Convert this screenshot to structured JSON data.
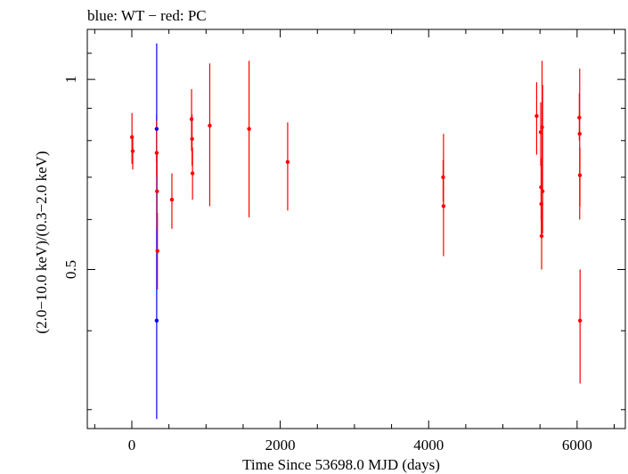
{
  "chart_data": {
    "type": "scatter",
    "title": "blue: WT − red: PC",
    "xlabel": "Time Since 53698.0 MJD (days)",
    "ylabel": "(2.0−10.0 keV)/(0.3−2.0 keV)",
    "xlim": [
      -600,
      6650
    ],
    "ylim": [
      0.28,
      1.2
    ],
    "y_log": true,
    "x_ticks": [
      0,
      2000,
      4000,
      6000
    ],
    "x_tick_labels": [
      "0",
      "2000",
      "4000",
      "6000"
    ],
    "y_ticks": [
      0.5,
      1
    ],
    "y_tick_labels": [
      "0.5",
      "1"
    ],
    "grid": false,
    "series": [
      {
        "color": "#0000ff",
        "points": [
          {
            "x": 335,
            "y": 0.835,
            "ylo": 0.74,
            "yhi": 0.88
          },
          {
            "x": 335,
            "y": 0.415,
            "ylo": 0.29,
            "yhi": 1.14
          }
        ]
      },
      {
        "color": "#ff0000",
        "points": [
          {
            "x": 2,
            "y": 0.81,
            "ylo": 0.735,
            "yhi": 0.885
          },
          {
            "x": 12,
            "y": 0.77,
            "ylo": 0.72,
            "yhi": 0.815
          },
          {
            "x": 335,
            "y": 0.765,
            "ylo": 0.7,
            "yhi": 0.86
          },
          {
            "x": 340,
            "y": 0.665,
            "ylo": 0.58,
            "yhi": 0.77
          },
          {
            "x": 345,
            "y": 0.535,
            "ylo": 0.465,
            "yhi": 0.615
          },
          {
            "x": 540,
            "y": 0.645,
            "ylo": 0.58,
            "yhi": 0.71
          },
          {
            "x": 805,
            "y": 0.865,
            "ylo": 0.77,
            "yhi": 0.965
          },
          {
            "x": 812,
            "y": 0.805,
            "ylo": 0.73,
            "yhi": 0.88
          },
          {
            "x": 818,
            "y": 0.71,
            "ylo": 0.645,
            "yhi": 0.78
          },
          {
            "x": 1050,
            "y": 0.845,
            "ylo": 0.63,
            "yhi": 1.06
          },
          {
            "x": 1580,
            "y": 0.835,
            "ylo": 0.605,
            "yhi": 1.07
          },
          {
            "x": 2100,
            "y": 0.74,
            "ylo": 0.62,
            "yhi": 0.855
          },
          {
            "x": 4195,
            "y": 0.7,
            "ylo": 0.64,
            "yhi": 0.745
          },
          {
            "x": 4200,
            "y": 0.63,
            "ylo": 0.525,
            "yhi": 0.82
          },
          {
            "x": 5455,
            "y": 0.875,
            "ylo": 0.76,
            "yhi": 0.99
          },
          {
            "x": 5510,
            "y": 0.825,
            "ylo": 0.73,
            "yhi": 0.92
          },
          {
            "x": 5515,
            "y": 0.675,
            "ylo": 0.6,
            "yhi": 0.75
          },
          {
            "x": 5518,
            "y": 0.635,
            "ylo": 0.56,
            "yhi": 0.71
          },
          {
            "x": 5522,
            "y": 0.565,
            "ylo": 0.5,
            "yhi": 0.63
          },
          {
            "x": 5528,
            "y": 0.84,
            "ylo": 0.66,
            "yhi": 1.07
          },
          {
            "x": 5535,
            "y": 0.665,
            "ylo": 0.57,
            "yhi": 0.98
          },
          {
            "x": 6030,
            "y": 0.87,
            "ylo": 0.8,
            "yhi": 0.95
          },
          {
            "x": 6035,
            "y": 0.82,
            "ylo": 0.6,
            "yhi": 1.04
          },
          {
            "x": 6038,
            "y": 0.705,
            "ylo": 0.63,
            "yhi": 0.78
          },
          {
            "x": 6040,
            "y": 0.415,
            "ylo": 0.33,
            "yhi": 0.5
          }
        ]
      }
    ]
  }
}
